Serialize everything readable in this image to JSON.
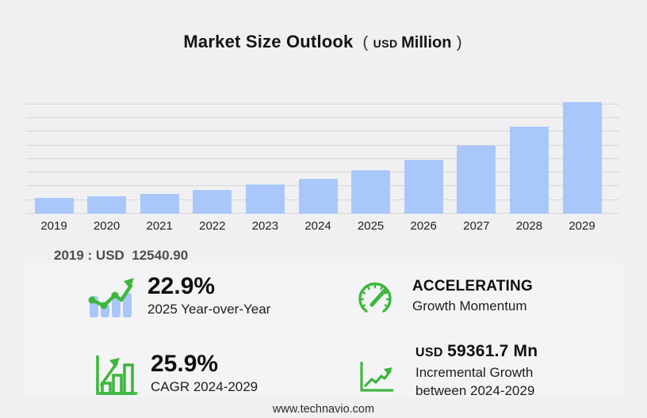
{
  "title": {
    "main": "Market Size Outlook",
    "paren_open": "(",
    "currency": "USD",
    "unit": "Million",
    "paren_close": ")"
  },
  "chart_data": {
    "type": "bar",
    "title": "Market Size Outlook (USD Million)",
    "xlabel": "",
    "ylabel": "USD Million",
    "categories": [
      "2019",
      "2020",
      "2021",
      "2022",
      "2023",
      "2024",
      "2025",
      "2026",
      "2027",
      "2028",
      "2029"
    ],
    "values": [
      12540.9,
      13600,
      15700,
      18800,
      23000,
      27460,
      33750,
      41900,
      53300,
      67900,
      86800
    ],
    "ylim": [
      0,
      87000
    ],
    "grid": true,
    "gridline_count": 9,
    "legend": "none",
    "bar_color": "#a9c7fb"
  },
  "annotation": {
    "base_year_value": "2019 : USD  12540.90"
  },
  "stats": [
    {
      "icon": "bar-chart-trend-icon",
      "value": "22.9%",
      "label": "2025 Year-over-Year"
    },
    {
      "icon": "speedometer-icon",
      "value": "ACCELERATING",
      "label": "Growth Momentum"
    },
    {
      "icon": "growth-bars-arrow-icon",
      "value": "25.9%",
      "label": "CAGR 2024-2029"
    },
    {
      "icon": "incremental-growth-icon",
      "value_prefix": "USD",
      "value": "59361.7 Mn",
      "label": "Incremental Growth between 2024-2029"
    }
  ],
  "footer": {
    "website": "www.technavio.com"
  },
  "colors": {
    "background": "#f0f0f2",
    "panel": "#f4f4f6",
    "bar": "#a9c7fb",
    "gridline": "#d5d5d6",
    "green": "#3eb73e",
    "text_dark": "#141414",
    "text_gray": "#4d4d4d"
  }
}
